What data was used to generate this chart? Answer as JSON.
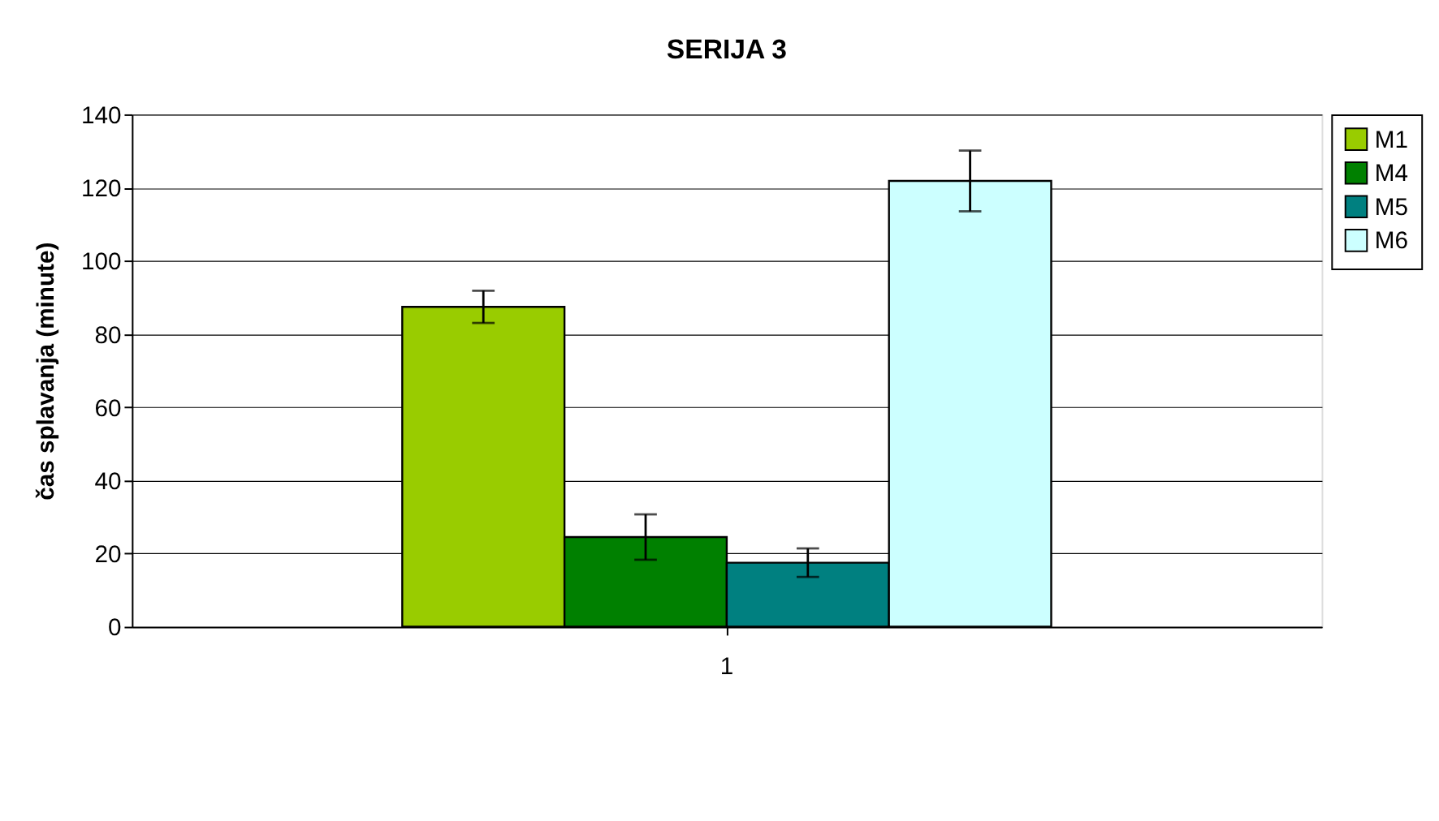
{
  "chart_data": {
    "type": "bar",
    "title": "SERIJA 3",
    "ylabel": "čas splavanja (minute)",
    "categories": [
      "1"
    ],
    "series": [
      {
        "name": "M1",
        "color": "#99cc00",
        "values": [
          87.4
        ],
        "errors": [
          4.4
        ]
      },
      {
        "name": "M4",
        "color": "#008000",
        "values": [
          24.5
        ],
        "errors": [
          6.2
        ]
      },
      {
        "name": "M5",
        "color": "#008080",
        "values": [
          17.5
        ],
        "errors": [
          3.9
        ]
      },
      {
        "name": "M6",
        "color": "#ccffff",
        "values": [
          121.8
        ],
        "errors": [
          8.3
        ]
      }
    ],
    "ylim": [
      0,
      140
    ],
    "yticks": [
      0,
      20,
      40,
      60,
      80,
      100,
      120,
      140
    ],
    "grid": "y",
    "legend": "right"
  }
}
